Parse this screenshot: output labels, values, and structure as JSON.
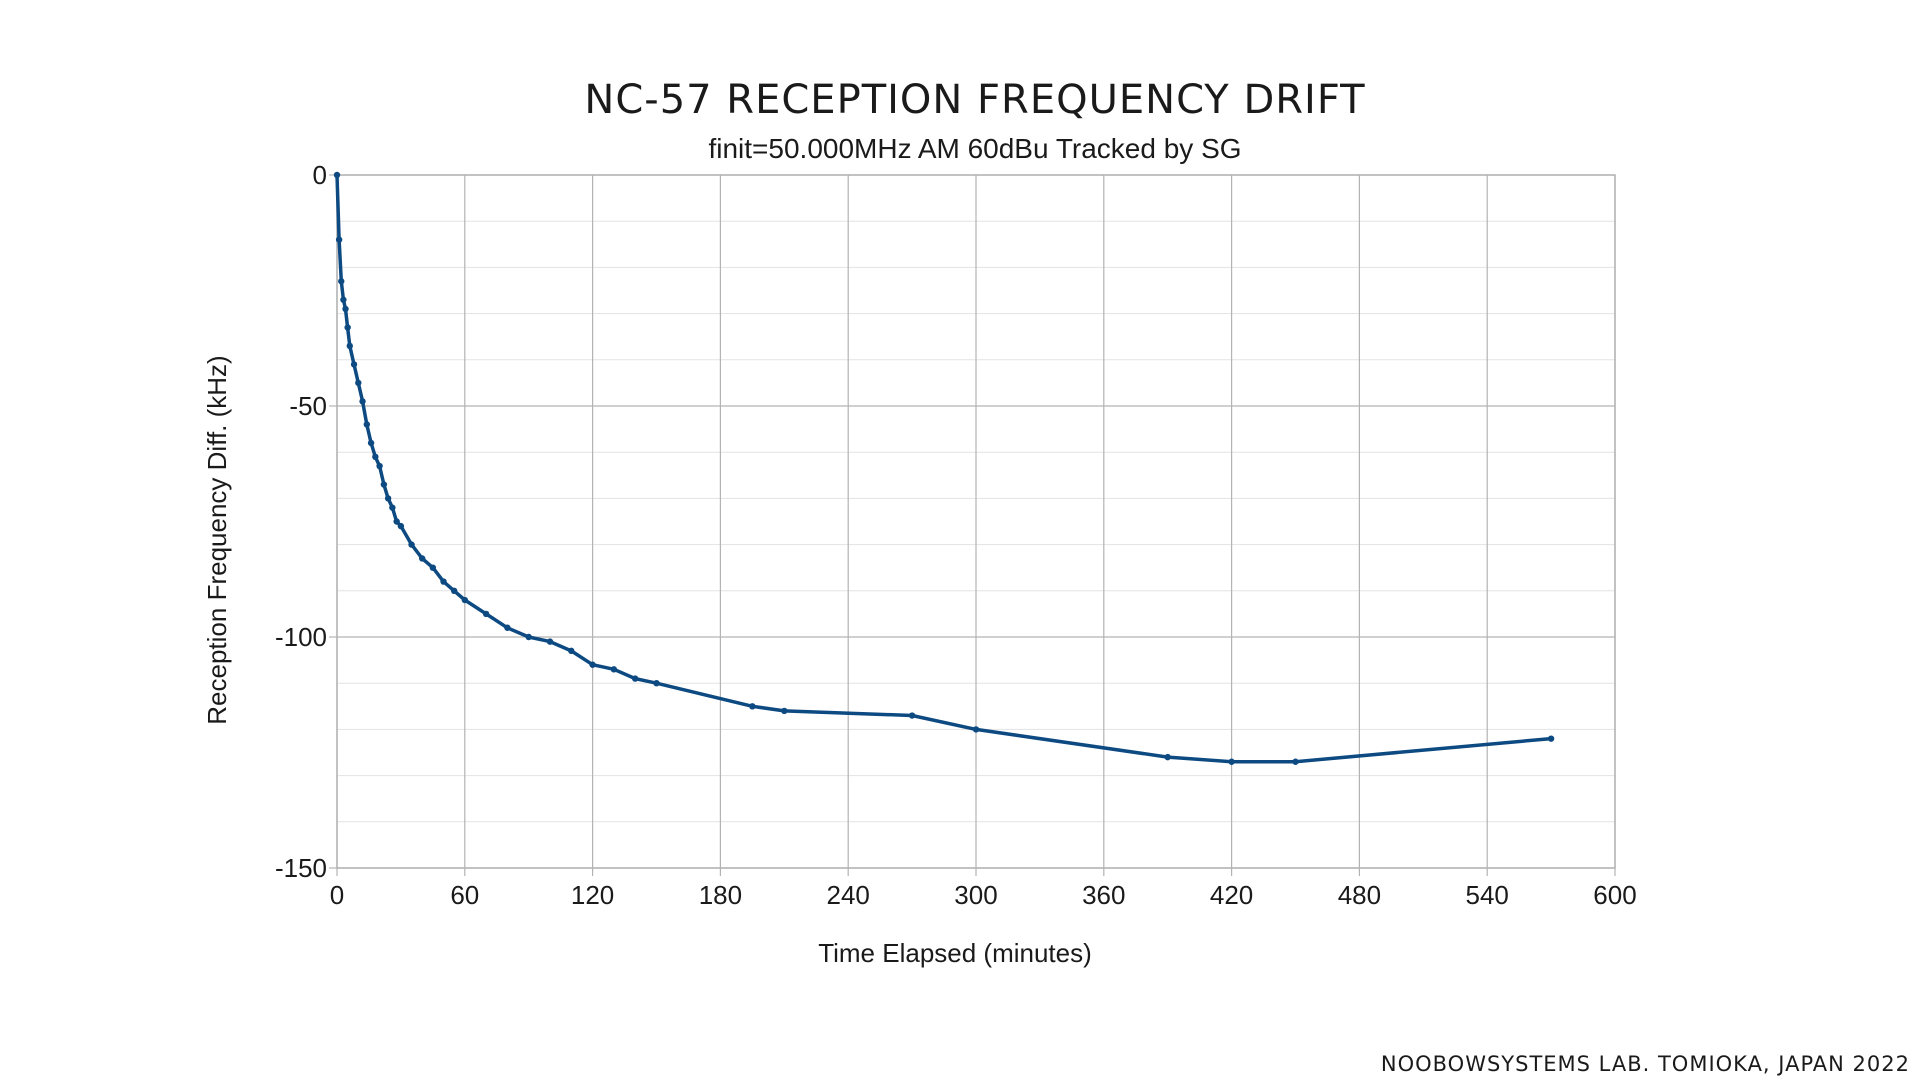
{
  "chart_data": {
    "type": "line",
    "title": "NC-57 RECEPTION FREQUENCY DRIFT",
    "subtitle": "finit=50.000MHz AM 60dBu Tracked by SG",
    "xlabel": "Time Elapsed (minutes)",
    "ylabel": "Reception Frequency Diff. (kHz)",
    "xlim": [
      0,
      600
    ],
    "ylim": [
      -150,
      0
    ],
    "xticks": [
      0,
      60,
      120,
      180,
      240,
      300,
      360,
      420,
      480,
      540,
      600
    ],
    "yticks": [
      0,
      -50,
      -100,
      -150
    ],
    "x_tick_labels": [
      "0",
      "60",
      "120",
      "180",
      "240",
      "300",
      "360",
      "420",
      "480",
      "540",
      "600"
    ],
    "y_tick_labels": [
      "0",
      "-50",
      "-100",
      "-150"
    ],
    "grid": true,
    "line_color": "#0d4a82",
    "series": [
      {
        "x": [
          0,
          1,
          2,
          3,
          4,
          5,
          6,
          8,
          10,
          12,
          14,
          16,
          18,
          20,
          22,
          24,
          26,
          28,
          30,
          35,
          40,
          45,
          50,
          55,
          60,
          70,
          80,
          90,
          100,
          110,
          120,
          130,
          140,
          150,
          195,
          210,
          270,
          300,
          390,
          420,
          450,
          570
        ],
        "y": [
          0,
          -14,
          -23,
          -27,
          -29,
          -33,
          -37,
          -41,
          -45,
          -49,
          -54,
          -58,
          -61,
          -63,
          -67,
          -70,
          -72,
          -75,
          -76,
          -80,
          -83,
          -85,
          -88,
          -90,
          -92,
          -95,
          -98,
          -100,
          -101,
          -103,
          -106,
          -107,
          -109,
          -110,
          -115,
          -116,
          -117,
          -120,
          -126,
          -127,
          -127,
          -122
        ]
      }
    ]
  },
  "footer": "NOOBOWSYSTEMS LAB. TOMIOKA, JAPAN 2022"
}
